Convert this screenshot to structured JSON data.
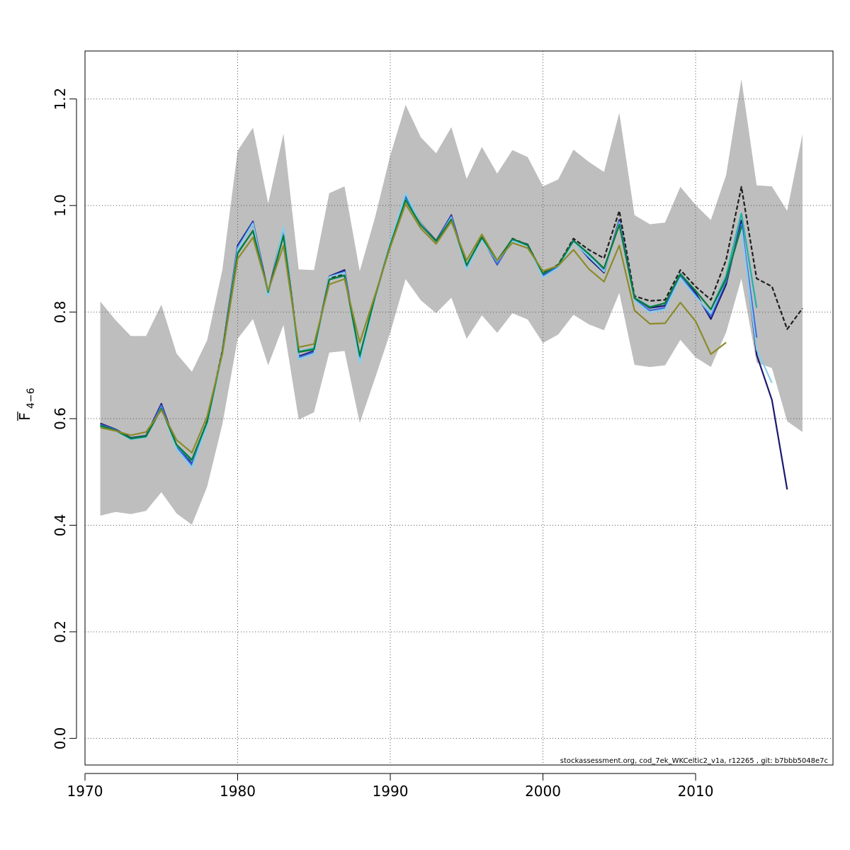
{
  "chart_data": {
    "type": "line",
    "title": "",
    "xlabel": "",
    "ylabel": {
      "main": "F",
      "subscript": "4−6"
    },
    "xlim": [
      1970,
      2019
    ],
    "ylim": [
      -0.05,
      1.29
    ],
    "x_ticks": [
      1970,
      1980,
      1990,
      2000,
      2010
    ],
    "x_tick_labels": [
      "1970",
      "1980",
      "1990",
      "2000",
      "2010"
    ],
    "y_ticks": [
      0.0,
      0.2,
      0.4,
      0.6,
      0.8,
      1.0,
      1.2
    ],
    "y_tick_labels": [
      "0.0",
      "0.2",
      "0.4",
      "0.6",
      "0.8",
      "1.0",
      "1.2"
    ],
    "grid": true,
    "footnote": "stockassessment.org, cod_7ek_WKCeltic2_v1a, r12265 , git: b7bbb5048e7c",
    "band": {
      "color": "#bebebe",
      "x": [
        1971,
        1972,
        1973,
        1974,
        1975,
        1976,
        1977,
        1978,
        1979,
        1980,
        1981,
        1982,
        1983,
        1984,
        1985,
        1986,
        1987,
        1988,
        1989,
        1990,
        1991,
        1992,
        1993,
        1994,
        1995,
        1996,
        1997,
        1998,
        1999,
        2000,
        2001,
        2002,
        2003,
        2004,
        2005,
        2006,
        2007,
        2008,
        2009,
        2010,
        2011,
        2012,
        2013,
        2014,
        2015,
        2016,
        2017
      ],
      "lower": [
        0.418,
        0.425,
        0.421,
        0.427,
        0.462,
        0.422,
        0.401,
        0.472,
        0.59,
        0.75,
        0.787,
        0.7,
        0.776,
        0.598,
        0.612,
        0.724,
        0.727,
        0.592,
        0.676,
        0.762,
        0.862,
        0.822,
        0.798,
        0.827,
        0.75,
        0.794,
        0.761,
        0.798,
        0.786,
        0.742,
        0.758,
        0.795,
        0.777,
        0.766,
        0.836,
        0.701,
        0.697,
        0.7,
        0.748,
        0.715,
        0.697,
        0.762,
        0.863,
        0.705,
        0.695,
        0.595,
        0.575
      ],
      "upper": [
        0.82,
        0.785,
        0.755,
        0.755,
        0.814,
        0.722,
        0.688,
        0.747,
        0.88,
        1.103,
        1.146,
        1.004,
        1.135,
        0.88,
        0.879,
        1.023,
        1.036,
        0.877,
        0.978,
        1.094,
        1.189,
        1.128,
        1.098,
        1.147,
        1.05,
        1.11,
        1.06,
        1.104,
        1.091,
        1.036,
        1.049,
        1.105,
        1.082,
        1.063,
        1.174,
        0.982,
        0.965,
        0.968,
        1.035,
        1.001,
        0.973,
        1.057,
        1.237,
        1.038,
        1.036,
        0.99,
        1.134
      ]
    },
    "series": [
      {
        "color": "#1e1e1e",
        "dashed": true,
        "x": [
          1971,
          1972,
          1973,
          1974,
          1975,
          1976,
          1977,
          1978,
          1979,
          1980,
          1981,
          1982,
          1983,
          1984,
          1985,
          1986,
          1987,
          1988,
          1989,
          1990,
          1991,
          1992,
          1993,
          1994,
          1995,
          1996,
          1997,
          1998,
          1999,
          2000,
          2001,
          2002,
          2003,
          2004,
          2005,
          2006,
          2007,
          2008,
          2009,
          2010,
          2011,
          2012,
          2013,
          2014,
          2015,
          2016,
          2017
        ],
        "values": [
          0.588,
          0.578,
          0.563,
          0.567,
          0.622,
          0.55,
          0.52,
          0.595,
          0.728,
          0.92,
          0.965,
          0.837,
          0.953,
          0.725,
          0.73,
          0.864,
          0.872,
          0.716,
          0.83,
          0.926,
          1.014,
          0.965,
          0.934,
          0.976,
          0.886,
          0.942,
          0.893,
          0.938,
          0.926,
          0.873,
          0.889,
          0.938,
          0.917,
          0.901,
          0.99,
          0.83,
          0.821,
          0.823,
          0.879,
          0.848,
          0.823,
          0.898,
          1.035,
          0.863,
          0.848,
          0.768,
          0.807
        ]
      },
      {
        "color": "#191970",
        "x": [
          1971,
          1972,
          1973,
          1974,
          1975,
          1976,
          1977,
          1978,
          1979,
          1980,
          1981,
          1982,
          1983,
          1984,
          1985,
          1986,
          1987,
          1988,
          1989,
          1990,
          1991,
          1992,
          1993,
          1994,
          1995,
          1996,
          1997,
          1998,
          1999,
          2000,
          2001,
          2002,
          2003,
          2004,
          2005,
          2006,
          2007,
          2008,
          2009,
          2010,
          2011,
          2012,
          2013,
          2014,
          2015,
          2016
        ],
        "values": [
          0.591,
          0.58,
          0.564,
          0.568,
          0.628,
          0.548,
          0.515,
          0.592,
          0.726,
          0.925,
          0.97,
          0.836,
          0.958,
          0.717,
          0.727,
          0.867,
          0.879,
          0.71,
          0.828,
          0.93,
          1.018,
          0.966,
          0.934,
          0.982,
          0.885,
          0.94,
          0.889,
          0.936,
          0.927,
          0.869,
          0.886,
          0.935,
          0.901,
          0.874,
          0.973,
          0.826,
          0.808,
          0.812,
          0.872,
          0.836,
          0.787,
          0.852,
          0.972,
          0.72,
          0.635,
          0.467
        ]
      },
      {
        "color": "#4169e1",
        "x": [
          1971,
          1972,
          1973,
          1974,
          1975,
          1976,
          1977,
          1978,
          1979,
          1980,
          1981,
          1982,
          1983,
          1984,
          1985,
          1986,
          1987,
          1988,
          1989,
          1990,
          1991,
          1992,
          1993,
          1994,
          1995,
          1996,
          1997,
          1998,
          1999,
          2000,
          2001,
          2002,
          2003,
          2004,
          2005,
          2006,
          2007,
          2008,
          2009,
          2010,
          2011,
          2012,
          2013,
          2014
        ],
        "values": [
          0.589,
          0.579,
          0.563,
          0.567,
          0.625,
          0.547,
          0.513,
          0.59,
          0.725,
          0.922,
          0.968,
          0.834,
          0.956,
          0.715,
          0.725,
          0.866,
          0.876,
          0.709,
          0.827,
          0.929,
          1.019,
          0.965,
          0.933,
          0.98,
          0.884,
          0.939,
          0.89,
          0.935,
          0.925,
          0.868,
          0.885,
          0.933,
          0.903,
          0.878,
          0.97,
          0.823,
          0.803,
          0.808,
          0.868,
          0.832,
          0.792,
          0.858,
          0.965,
          0.752
        ]
      },
      {
        "color": "#87ceeb",
        "x": [
          1971,
          1972,
          1973,
          1974,
          1975,
          1976,
          1977,
          1978,
          1979,
          1980,
          1981,
          1982,
          1983,
          1984,
          1985,
          1986,
          1987,
          1988,
          1989,
          1990,
          1991,
          1992,
          1993,
          1994,
          1995,
          1996,
          1997,
          1998,
          1999,
          2000,
          2001,
          2002,
          2003,
          2004,
          2005,
          2006,
          2007,
          2008,
          2009,
          2010,
          2011,
          2012,
          2013,
          2014,
          2015
        ],
        "values": [
          0.586,
          0.577,
          0.561,
          0.565,
          0.62,
          0.543,
          0.508,
          0.587,
          0.722,
          0.918,
          0.966,
          0.83,
          0.96,
          0.711,
          0.721,
          0.866,
          0.874,
          0.704,
          0.826,
          0.931,
          1.023,
          0.965,
          0.932,
          0.977,
          0.88,
          0.936,
          0.895,
          0.933,
          0.925,
          0.865,
          0.883,
          0.932,
          0.905,
          0.876,
          0.968,
          0.822,
          0.799,
          0.805,
          0.864,
          0.829,
          0.798,
          0.862,
          0.958,
          0.73,
          0.667
        ]
      },
      {
        "color": "#20b2aa",
        "x": [
          1971,
          1972,
          1973,
          1974,
          1975,
          1976,
          1977,
          1978,
          1979,
          1980,
          1981,
          1982,
          1983,
          1984,
          1985,
          1986,
          1987,
          1988,
          1989,
          1990,
          1991,
          1992,
          1993,
          1994,
          1995,
          1996,
          1997,
          1998,
          1999,
          2000,
          2001,
          2002,
          2003,
          2004,
          2005,
          2006,
          2007,
          2008,
          2009,
          2010,
          2011,
          2012,
          2013,
          2014
        ],
        "values": [
          0.586,
          0.578,
          0.562,
          0.566,
          0.619,
          0.55,
          0.521,
          0.593,
          0.725,
          0.912,
          0.952,
          0.837,
          0.945,
          0.726,
          0.732,
          0.861,
          0.868,
          0.718,
          0.83,
          0.926,
          1.012,
          0.963,
          0.933,
          0.974,
          0.888,
          0.94,
          0.896,
          0.937,
          0.925,
          0.872,
          0.888,
          0.934,
          0.91,
          0.882,
          0.965,
          0.827,
          0.81,
          0.816,
          0.872,
          0.84,
          0.805,
          0.868,
          0.985,
          0.808
        ]
      },
      {
        "color": "#0a7a3c",
        "x": [
          1971,
          1972,
          1973,
          1974,
          1975,
          1976,
          1977,
          1978,
          1979,
          1980,
          1981,
          1982,
          1983,
          1984,
          1985,
          1986,
          1987,
          1988,
          1989,
          1990,
          1991,
          1992,
          1993,
          1994,
          1995,
          1996,
          1997,
          1998,
          1999,
          2000,
          2001,
          2002,
          2003,
          2004,
          2005,
          2006,
          2007,
          2008,
          2009,
          2010,
          2011,
          2012,
          2013
        ],
        "values": [
          0.587,
          0.578,
          0.563,
          0.567,
          0.619,
          0.551,
          0.523,
          0.594,
          0.725,
          0.91,
          0.953,
          0.838,
          0.943,
          0.725,
          0.73,
          0.861,
          0.869,
          0.718,
          0.829,
          0.926,
          1.01,
          0.963,
          0.933,
          0.974,
          0.888,
          0.94,
          0.897,
          0.937,
          0.926,
          0.872,
          0.888,
          0.934,
          0.909,
          0.882,
          0.964,
          0.826,
          0.809,
          0.817,
          0.871,
          0.84,
          0.805,
          0.862,
          0.96
        ]
      },
      {
        "color": "#8b8b2a",
        "x": [
          1971,
          1972,
          1973,
          1974,
          1975,
          1976,
          1977,
          1978,
          1979,
          1980,
          1981,
          1982,
          1983,
          1984,
          1985,
          1986,
          1987,
          1988,
          1989,
          1990,
          1991,
          1992,
          1993,
          1994,
          1995,
          1996,
          1997,
          1998,
          1999,
          2000,
          2001,
          2002,
          2003,
          2004,
          2005,
          2006,
          2007,
          2008,
          2009,
          2010,
          2011,
          2012
        ],
        "values": [
          0.583,
          0.577,
          0.569,
          0.575,
          0.616,
          0.56,
          0.536,
          0.604,
          0.722,
          0.9,
          0.94,
          0.84,
          0.925,
          0.734,
          0.74,
          0.852,
          0.862,
          0.743,
          0.832,
          0.922,
          1.003,
          0.957,
          0.928,
          0.97,
          0.897,
          0.946,
          0.897,
          0.93,
          0.92,
          0.877,
          0.887,
          0.917,
          0.881,
          0.857,
          0.925,
          0.803,
          0.778,
          0.779,
          0.818,
          0.783,
          0.721,
          0.743
        ]
      }
    ]
  }
}
